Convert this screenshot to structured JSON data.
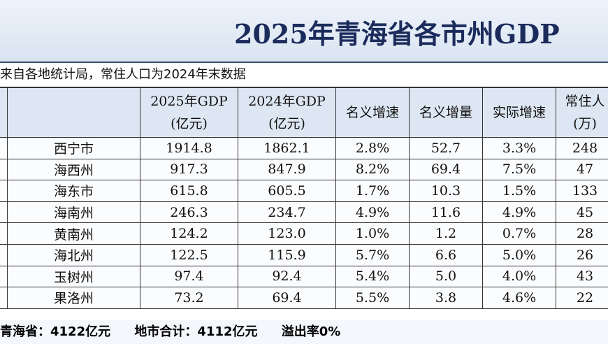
{
  "header": {
    "title": "2025年青海省各市州GDP",
    "subtitle": "来自各地统计局，常住人口为2024年末数据"
  },
  "table": {
    "columns": [
      [
        "2025年GDP",
        "(亿元)"
      ],
      [
        "2024年GDP",
        "(亿元)"
      ],
      [
        "名义增速"
      ],
      [
        "名义增量"
      ],
      [
        "实际增速"
      ],
      [
        "常住人",
        "(万)"
      ]
    ],
    "rows": [
      [
        "西宁市",
        "1914.8",
        "1862.1",
        "2.8%",
        "52.7",
        "3.3%",
        "248"
      ],
      [
        "海西州",
        "917.3",
        "847.9",
        "8.2%",
        "69.4",
        "7.5%",
        "47"
      ],
      [
        "海东市",
        "615.8",
        "605.5",
        "1.7%",
        "10.3",
        "1.5%",
        "133"
      ],
      [
        "海南州",
        "246.3",
        "234.7",
        "4.9%",
        "11.6",
        "4.9%",
        "45"
      ],
      [
        "黄南州",
        "124.2",
        "123.0",
        "1.0%",
        "1.2",
        "0.7%",
        "28"
      ],
      [
        "海北州",
        "122.5",
        "115.9",
        "5.7%",
        "6.6",
        "5.0%",
        "26"
      ],
      [
        "玉树州",
        "97.4",
        "92.4",
        "5.4%",
        "5.0",
        "4.0%",
        "43"
      ],
      [
        "果洛州",
        "73.2",
        "69.4",
        "5.5%",
        "3.8",
        "4.6%",
        "22"
      ]
    ]
  },
  "footer": {
    "province": "青海省：4122亿元",
    "sum": "地市合计：4112亿元",
    "overflow": "溢出率0%"
  }
}
